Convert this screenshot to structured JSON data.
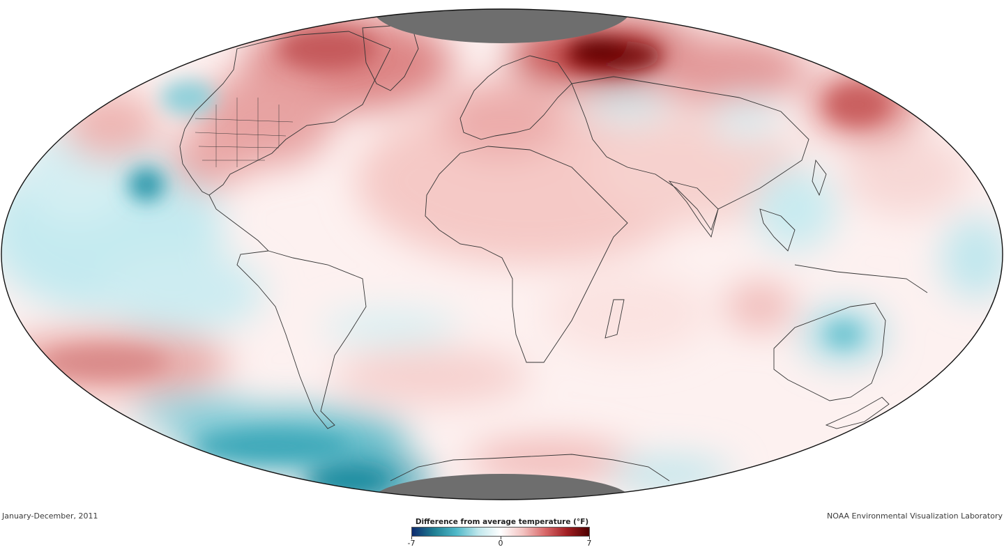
{
  "map": {
    "projection": "Mollweide-like ellipse",
    "polar_no_data_color": "#6e6e6e",
    "outline_color": "#111111",
    "coastline_color": "#333333",
    "anomaly_regions": [
      {
        "name": "Arctic Russia / Barents",
        "anomaly_F": 6.5
      },
      {
        "name": "Greenland / Canadian Arctic",
        "anomaly_F": 3.5
      },
      {
        "name": "Europe",
        "anomaly_F": 2
      },
      {
        "name": "Eastern North America",
        "anomaly_F": 2.5
      },
      {
        "name": "Western North America",
        "anomaly_F": -1
      },
      {
        "name": "Eastern Tropical Pacific",
        "anomaly_F": -2
      },
      {
        "name": "Southern Ocean (South Pacific)",
        "anomaly_F": -4
      },
      {
        "name": "Eastern Siberia / North Pacific",
        "anomaly_F": 3
      },
      {
        "name": "Australia interior",
        "anomaly_F": -2
      },
      {
        "name": "Southeast Asia",
        "anomaly_F": -1
      },
      {
        "name": "Africa / Middle East",
        "anomaly_F": 1.5
      },
      {
        "name": "South Pacific midlatitudes",
        "anomaly_F": 3
      }
    ]
  },
  "captions": {
    "date_range": "January-December, 2011",
    "credit": "NOAA Environmental Visualization Laboratory"
  },
  "legend": {
    "title": "Difference from average temperature (°F)",
    "min_label": "-7",
    "mid_label": "0",
    "max_label": "7",
    "colors": [
      "#0d2a6e",
      "#1f7f93",
      "#4fb8c8",
      "#bfe7ec",
      "#ffffff",
      "#f3c4c2",
      "#d9696a",
      "#a11e22",
      "#4d0000"
    ]
  }
}
